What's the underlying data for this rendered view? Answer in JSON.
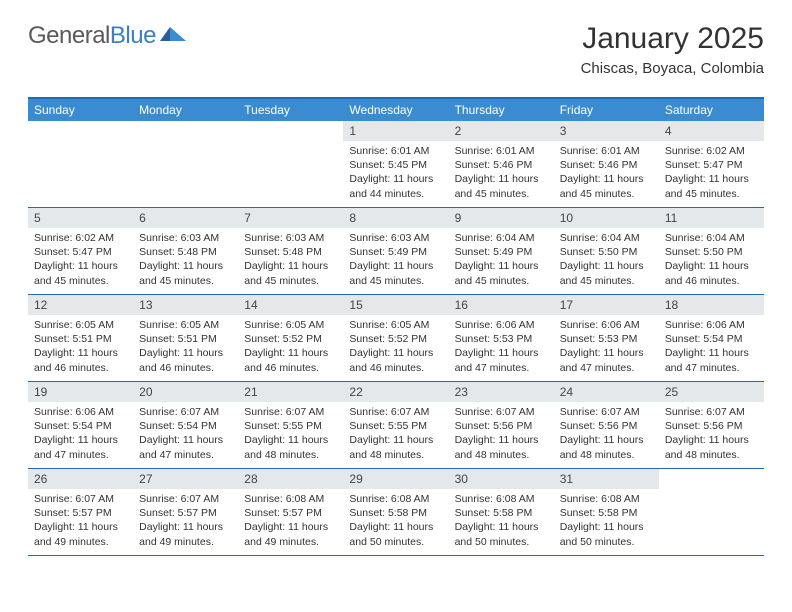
{
  "brand": {
    "part1": "General",
    "part2": "Blue"
  },
  "title": "January 2025",
  "subtitle": "Chiscas, Boyaca, Colombia",
  "colors": {
    "header_bar": "#3b8bd0",
    "border": "#1f6bb0",
    "daynum_bg": "#e5e8eb",
    "text": "#333333",
    "logo_gray": "#5a5a5a",
    "logo_blue": "#3b7fc4",
    "background": "#ffffff"
  },
  "weekdays": [
    "Sunday",
    "Monday",
    "Tuesday",
    "Wednesday",
    "Thursday",
    "Friday",
    "Saturday"
  ],
  "weeks": [
    [
      {
        "day": "",
        "sunrise": "",
        "sunset": "",
        "daylight": ""
      },
      {
        "day": "",
        "sunrise": "",
        "sunset": "",
        "daylight": ""
      },
      {
        "day": "",
        "sunrise": "",
        "sunset": "",
        "daylight": ""
      },
      {
        "day": "1",
        "sunrise": "6:01 AM",
        "sunset": "5:45 PM",
        "daylight": "11 hours and 44 minutes."
      },
      {
        "day": "2",
        "sunrise": "6:01 AM",
        "sunset": "5:46 PM",
        "daylight": "11 hours and 45 minutes."
      },
      {
        "day": "3",
        "sunrise": "6:01 AM",
        "sunset": "5:46 PM",
        "daylight": "11 hours and 45 minutes."
      },
      {
        "day": "4",
        "sunrise": "6:02 AM",
        "sunset": "5:47 PM",
        "daylight": "11 hours and 45 minutes."
      }
    ],
    [
      {
        "day": "5",
        "sunrise": "6:02 AM",
        "sunset": "5:47 PM",
        "daylight": "11 hours and 45 minutes."
      },
      {
        "day": "6",
        "sunrise": "6:03 AM",
        "sunset": "5:48 PM",
        "daylight": "11 hours and 45 minutes."
      },
      {
        "day": "7",
        "sunrise": "6:03 AM",
        "sunset": "5:48 PM",
        "daylight": "11 hours and 45 minutes."
      },
      {
        "day": "8",
        "sunrise": "6:03 AM",
        "sunset": "5:49 PM",
        "daylight": "11 hours and 45 minutes."
      },
      {
        "day": "9",
        "sunrise": "6:04 AM",
        "sunset": "5:49 PM",
        "daylight": "11 hours and 45 minutes."
      },
      {
        "day": "10",
        "sunrise": "6:04 AM",
        "sunset": "5:50 PM",
        "daylight": "11 hours and 45 minutes."
      },
      {
        "day": "11",
        "sunrise": "6:04 AM",
        "sunset": "5:50 PM",
        "daylight": "11 hours and 46 minutes."
      }
    ],
    [
      {
        "day": "12",
        "sunrise": "6:05 AM",
        "sunset": "5:51 PM",
        "daylight": "11 hours and 46 minutes."
      },
      {
        "day": "13",
        "sunrise": "6:05 AM",
        "sunset": "5:51 PM",
        "daylight": "11 hours and 46 minutes."
      },
      {
        "day": "14",
        "sunrise": "6:05 AM",
        "sunset": "5:52 PM",
        "daylight": "11 hours and 46 minutes."
      },
      {
        "day": "15",
        "sunrise": "6:05 AM",
        "sunset": "5:52 PM",
        "daylight": "11 hours and 46 minutes."
      },
      {
        "day": "16",
        "sunrise": "6:06 AM",
        "sunset": "5:53 PM",
        "daylight": "11 hours and 47 minutes."
      },
      {
        "day": "17",
        "sunrise": "6:06 AM",
        "sunset": "5:53 PM",
        "daylight": "11 hours and 47 minutes."
      },
      {
        "day": "18",
        "sunrise": "6:06 AM",
        "sunset": "5:54 PM",
        "daylight": "11 hours and 47 minutes."
      }
    ],
    [
      {
        "day": "19",
        "sunrise": "6:06 AM",
        "sunset": "5:54 PM",
        "daylight": "11 hours and 47 minutes."
      },
      {
        "day": "20",
        "sunrise": "6:07 AM",
        "sunset": "5:54 PM",
        "daylight": "11 hours and 47 minutes."
      },
      {
        "day": "21",
        "sunrise": "6:07 AM",
        "sunset": "5:55 PM",
        "daylight": "11 hours and 48 minutes."
      },
      {
        "day": "22",
        "sunrise": "6:07 AM",
        "sunset": "5:55 PM",
        "daylight": "11 hours and 48 minutes."
      },
      {
        "day": "23",
        "sunrise": "6:07 AM",
        "sunset": "5:56 PM",
        "daylight": "11 hours and 48 minutes."
      },
      {
        "day": "24",
        "sunrise": "6:07 AM",
        "sunset": "5:56 PM",
        "daylight": "11 hours and 48 minutes."
      },
      {
        "day": "25",
        "sunrise": "6:07 AM",
        "sunset": "5:56 PM",
        "daylight": "11 hours and 48 minutes."
      }
    ],
    [
      {
        "day": "26",
        "sunrise": "6:07 AM",
        "sunset": "5:57 PM",
        "daylight": "11 hours and 49 minutes."
      },
      {
        "day": "27",
        "sunrise": "6:07 AM",
        "sunset": "5:57 PM",
        "daylight": "11 hours and 49 minutes."
      },
      {
        "day": "28",
        "sunrise": "6:08 AM",
        "sunset": "5:57 PM",
        "daylight": "11 hours and 49 minutes."
      },
      {
        "day": "29",
        "sunrise": "6:08 AM",
        "sunset": "5:58 PM",
        "daylight": "11 hours and 50 minutes."
      },
      {
        "day": "30",
        "sunrise": "6:08 AM",
        "sunset": "5:58 PM",
        "daylight": "11 hours and 50 minutes."
      },
      {
        "day": "31",
        "sunrise": "6:08 AM",
        "sunset": "5:58 PM",
        "daylight": "11 hours and 50 minutes."
      },
      {
        "day": "",
        "sunrise": "",
        "sunset": "",
        "daylight": ""
      }
    ]
  ],
  "labels": {
    "sunrise": "Sunrise:",
    "sunset": "Sunset:",
    "daylight": "Daylight:"
  }
}
